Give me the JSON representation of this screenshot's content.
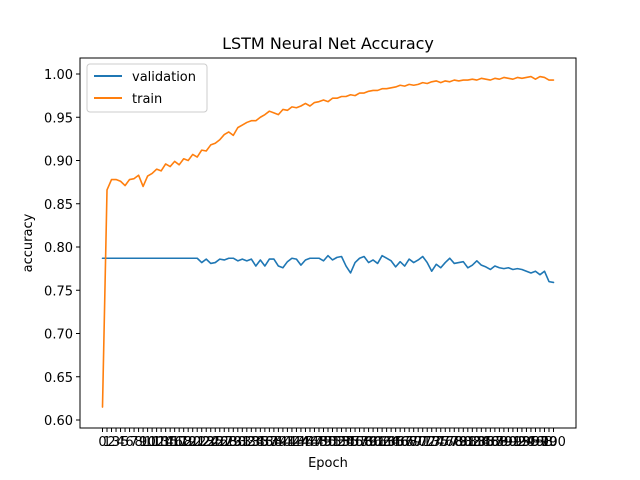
{
  "chart_data": {
    "type": "line",
    "title": "LSTM Neural Net Accuracy",
    "xlabel": "Epoch",
    "ylabel": "accuracy",
    "xlim": [
      0,
      100
    ],
    "ylim": [
      0.6,
      1.0
    ],
    "y_ticks": [
      "0.60",
      "0.65",
      "0.70",
      "0.75",
      "0.80",
      "0.85",
      "0.90",
      "0.95",
      "1.00"
    ],
    "grid": false,
    "legend_position": "top-left",
    "x": [
      0,
      1,
      2,
      3,
      4,
      5,
      6,
      7,
      8,
      9,
      10,
      11,
      12,
      13,
      14,
      15,
      16,
      17,
      18,
      19,
      20,
      21,
      22,
      23,
      24,
      25,
      26,
      27,
      28,
      29,
      30,
      31,
      32,
      33,
      34,
      35,
      36,
      37,
      38,
      39,
      40,
      41,
      42,
      43,
      44,
      45,
      46,
      47,
      48,
      49,
      50,
      51,
      52,
      53,
      54,
      55,
      56,
      57,
      58,
      59,
      60,
      61,
      62,
      63,
      64,
      65,
      66,
      67,
      68,
      69,
      70,
      71,
      72,
      73,
      74,
      75,
      76,
      77,
      78,
      79,
      80,
      81,
      82,
      83,
      84,
      85,
      86,
      87,
      88,
      89,
      90,
      91,
      92,
      93,
      94,
      95,
      96,
      97,
      98,
      99,
      100
    ],
    "series": [
      {
        "name": "validation",
        "color": "#1f77b4",
        "values": [
          0.787,
          0.787,
          0.787,
          0.787,
          0.787,
          0.787,
          0.787,
          0.787,
          0.787,
          0.787,
          0.787,
          0.787,
          0.787,
          0.787,
          0.787,
          0.787,
          0.787,
          0.787,
          0.787,
          0.787,
          0.787,
          0.787,
          0.782,
          0.786,
          0.781,
          0.782,
          0.786,
          0.785,
          0.787,
          0.787,
          0.784,
          0.786,
          0.784,
          0.786,
          0.778,
          0.785,
          0.778,
          0.786,
          0.786,
          0.778,
          0.776,
          0.783,
          0.787,
          0.786,
          0.779,
          0.785,
          0.787,
          0.787,
          0.787,
          0.784,
          0.79,
          0.785,
          0.788,
          0.789,
          0.778,
          0.77,
          0.782,
          0.787,
          0.789,
          0.782,
          0.785,
          0.781,
          0.79,
          0.787,
          0.784,
          0.777,
          0.783,
          0.778,
          0.786,
          0.782,
          0.785,
          0.789,
          0.782,
          0.772,
          0.78,
          0.776,
          0.782,
          0.787,
          0.781,
          0.782,
          0.783,
          0.776,
          0.779,
          0.784,
          0.779,
          0.777,
          0.774,
          0.778,
          0.776,
          0.775,
          0.776,
          0.774,
          0.775,
          0.774,
          0.772,
          0.77,
          0.772,
          0.768,
          0.772,
          0.76,
          0.759
        ]
      },
      {
        "name": "train",
        "color": "#ff7f0e",
        "values": [
          0.615,
          0.866,
          0.878,
          0.878,
          0.876,
          0.871,
          0.878,
          0.879,
          0.883,
          0.87,
          0.882,
          0.885,
          0.89,
          0.888,
          0.896,
          0.893,
          0.899,
          0.895,
          0.902,
          0.9,
          0.907,
          0.904,
          0.912,
          0.911,
          0.918,
          0.92,
          0.924,
          0.93,
          0.933,
          0.929,
          0.938,
          0.941,
          0.944,
          0.946,
          0.946,
          0.95,
          0.953,
          0.957,
          0.955,
          0.953,
          0.959,
          0.958,
          0.962,
          0.961,
          0.963,
          0.966,
          0.963,
          0.967,
          0.968,
          0.97,
          0.968,
          0.972,
          0.972,
          0.974,
          0.974,
          0.976,
          0.975,
          0.978,
          0.978,
          0.98,
          0.981,
          0.981,
          0.983,
          0.983,
          0.984,
          0.985,
          0.987,
          0.986,
          0.988,
          0.987,
          0.988,
          0.99,
          0.989,
          0.991,
          0.992,
          0.99,
          0.992,
          0.991,
          0.993,
          0.992,
          0.993,
          0.993,
          0.994,
          0.993,
          0.995,
          0.994,
          0.993,
          0.995,
          0.994,
          0.996,
          0.995,
          0.994,
          0.996,
          0.995,
          0.996,
          0.997,
          0.994,
          0.997,
          0.996,
          0.993,
          0.993
        ]
      }
    ]
  }
}
